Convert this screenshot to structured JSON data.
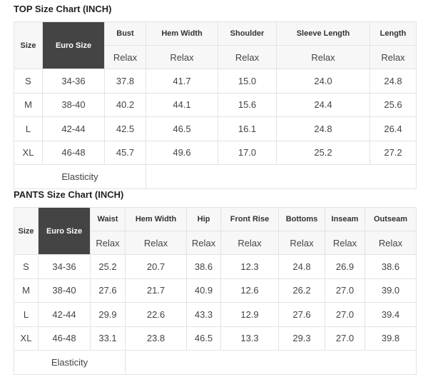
{
  "top": {
    "title": "TOP Size Chart (INCH)",
    "headers": [
      "Size",
      "Euro Size",
      "Bust",
      "Hem Width",
      "Shoulder",
      "Sleeve Length",
      "Length"
    ],
    "subheaders": [
      "Relax",
      "Relax",
      "Relax",
      "Relax",
      "Relax"
    ],
    "rows": [
      [
        "S",
        "34-36",
        "37.8",
        "41.7",
        "15.0",
        "24.0",
        "24.8"
      ],
      [
        "M",
        "38-40",
        "40.2",
        "44.1",
        "15.6",
        "24.4",
        "25.6"
      ],
      [
        "L",
        "42-44",
        "42.5",
        "46.5",
        "16.1",
        "24.8",
        "26.4"
      ],
      [
        "XL",
        "46-48",
        "45.7",
        "49.6",
        "17.0",
        "25.2",
        "27.2"
      ]
    ],
    "footer": "Elasticity"
  },
  "pants": {
    "title": "PANTS Size Chart (INCH)",
    "headers": [
      "Size",
      "Euro Size",
      "Waist",
      "Hem Width",
      "Hip",
      "Front Rise",
      "Bottoms",
      "Inseam",
      "Outseam"
    ],
    "subheaders": [
      "Relax",
      "Relax",
      "Relax",
      "Relax",
      "Relax",
      "Relax",
      "Relax"
    ],
    "rows": [
      [
        "S",
        "34-36",
        "25.2",
        "20.7",
        "38.6",
        "12.3",
        "24.8",
        "26.9",
        "38.6"
      ],
      [
        "M",
        "38-40",
        "27.6",
        "21.7",
        "40.9",
        "12.6",
        "26.2",
        "27.0",
        "39.0"
      ],
      [
        "L",
        "42-44",
        "29.9",
        "22.6",
        "43.3",
        "12.9",
        "27.6",
        "27.0",
        "39.4"
      ],
      [
        "XL",
        "46-48",
        "33.1",
        "23.8",
        "46.5",
        "13.3",
        "29.3",
        "27.0",
        "39.8"
      ]
    ],
    "footer": "Elasticity"
  },
  "colors": {
    "euro_header_bg": "#444444",
    "header_bg": "#f7f7f7",
    "border": "#e3e3e3"
  }
}
